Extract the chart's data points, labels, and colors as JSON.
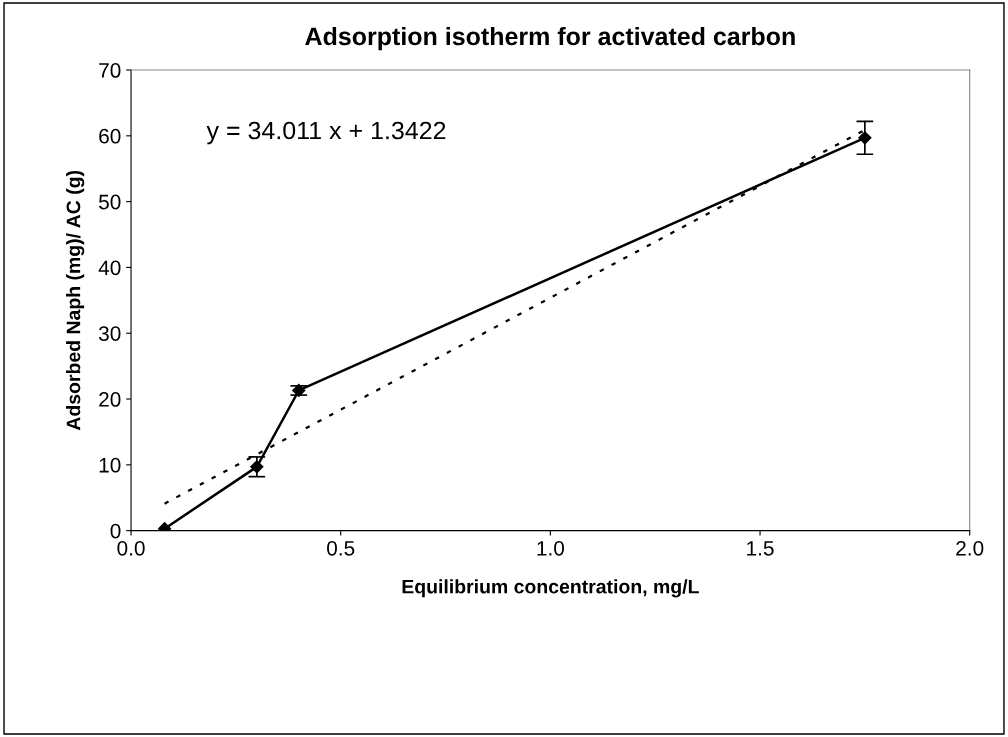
{
  "chart_data": {
    "type": "line",
    "title": "Adsorption isotherm for activated carbon",
    "xlabel": "Equilibrium concentration, mg/L",
    "ylabel": "Adsorbed Naph (mg)/ AC (g)",
    "annotations": [
      "y = 34.011 x + 1.3422"
    ],
    "x": [
      0.08,
      0.3,
      0.4,
      1.75
    ],
    "series": [
      {
        "color": "#000000",
        "values": [
          0.3,
          9.7,
          21.3,
          59.7
        ],
        "errors": [
          null,
          1.5,
          0.7,
          2.5
        ],
        "marker": "diamond",
        "line_style": "solid"
      },
      {
        "type": "line",
        "color": "#000000",
        "x": [
          0.08,
          1.75
        ],
        "values": [
          4.1,
          60.9
        ],
        "marker": "none",
        "line_style": "dotted"
      }
    ],
    "xlim": [
      0,
      2
    ],
    "ylim": [
      0,
      70
    ],
    "xticks": [
      {
        "value": 0,
        "label": "0.0"
      },
      {
        "value": 0.5,
        "label": "0.5"
      },
      {
        "value": 1,
        "label": "1.0"
      },
      {
        "value": 1.5,
        "label": "1.5"
      },
      {
        "value": 2,
        "label": "2.0"
      }
    ],
    "yticks": [
      0,
      10,
      20,
      30,
      40,
      50,
      60,
      70
    ],
    "grid": false,
    "legend": false
  }
}
